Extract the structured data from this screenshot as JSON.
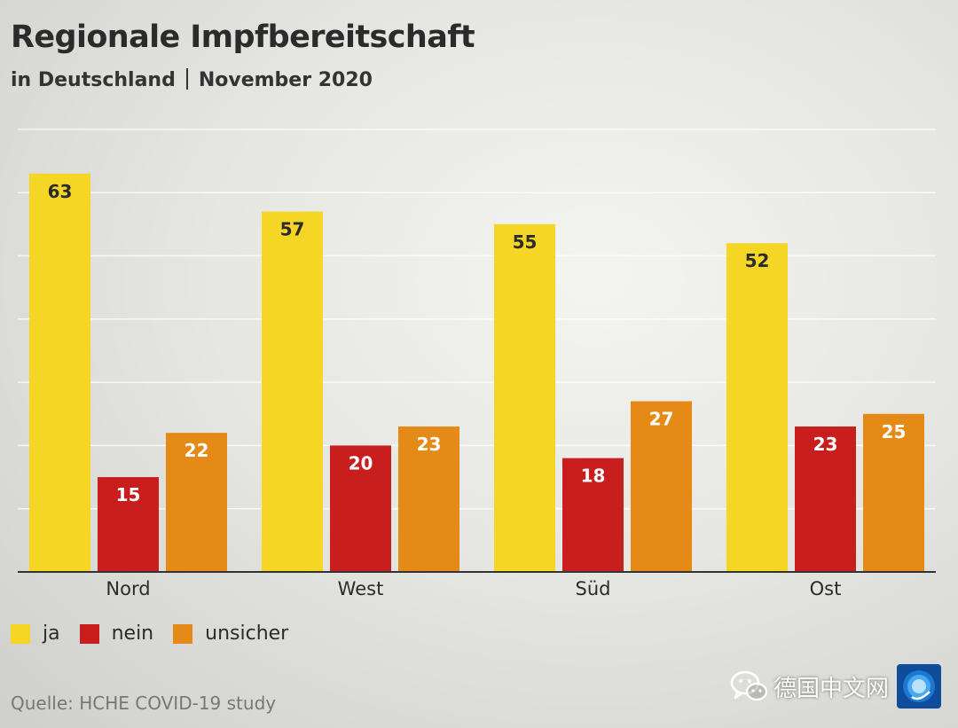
{
  "header": {
    "title": "Regionale Impfbereitschaft",
    "subtitle_region": "in Deutschland",
    "subtitle_date": "November 2020"
  },
  "chart_data": {
    "type": "bar",
    "title": "Regionale Impfbereitschaft",
    "categories": [
      "Nord",
      "West",
      "Süd",
      "Ost"
    ],
    "series": [
      {
        "name": "ja",
        "values": [
          63,
          57,
          55,
          52
        ],
        "color": "#f5d625",
        "label_color": "#2b2b2b"
      },
      {
        "name": "nein",
        "values": [
          15,
          20,
          18,
          23
        ],
        "color": "#c81e1e",
        "label_color": "#ffffff"
      },
      {
        "name": "unsicher",
        "values": [
          22,
          23,
          27,
          25
        ],
        "color": "#e58a16",
        "label_color": "#ffffff"
      }
    ],
    "ylim": [
      0,
      70
    ],
    "grid": true,
    "gridline_step": 10,
    "legend_position": "bottom-left",
    "xlabel": "",
    "ylabel": ""
  },
  "legend": {
    "items": [
      {
        "label": "ja",
        "color": "#f5d625"
      },
      {
        "label": "nein",
        "color": "#c81e1e"
      },
      {
        "label": "unsicher",
        "color": "#e58a16"
      }
    ]
  },
  "source": "Quelle: HCHE COVID-19 study",
  "watermark": {
    "text": "德国中文网",
    "icon": "wechat-icon",
    "logo": "dw-logo-icon"
  }
}
